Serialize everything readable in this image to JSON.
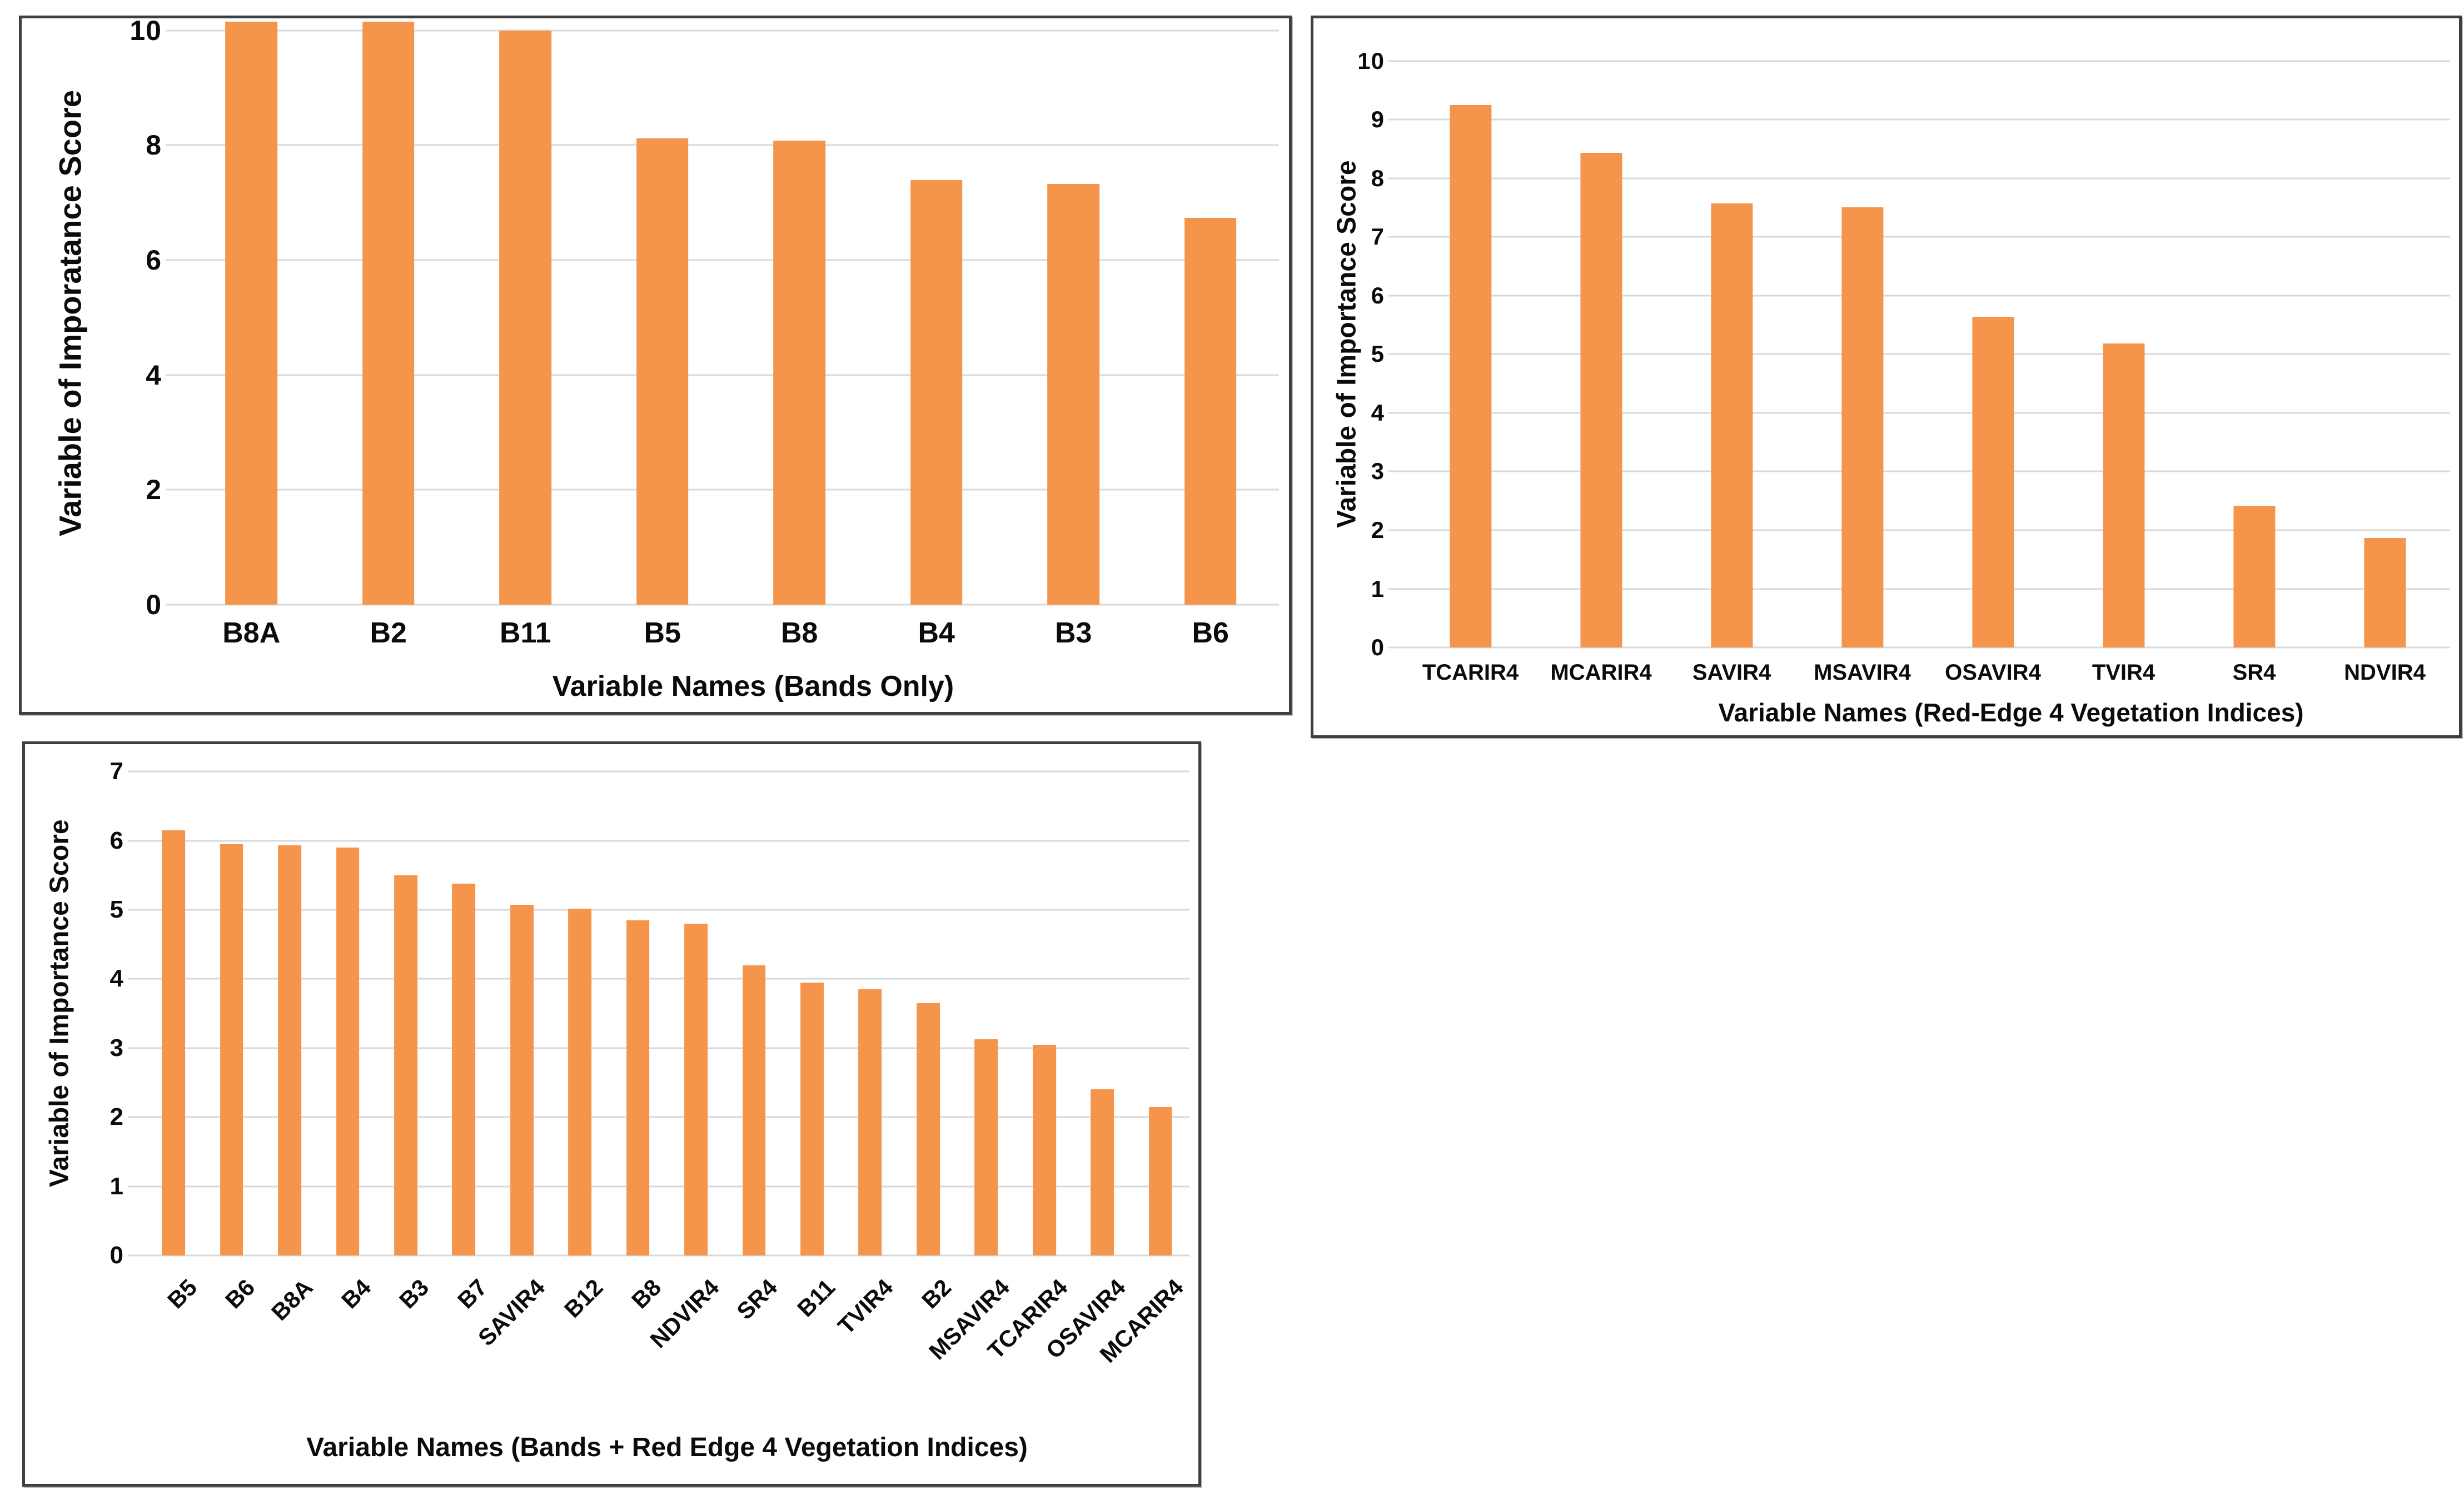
{
  "page": {
    "background": "#ffffff",
    "description": "Figure with three bar charts of random-forest variable importance scores for Sentinel-2 bands and red-edge vegetation indices"
  },
  "colors": {
    "bar": "#f5954b",
    "gridline": "#d9d9d9",
    "panel_border": "#3f3f3f",
    "text": "#0b0b0b"
  },
  "chart_data": [
    {
      "id": "bands-only",
      "type": "bar",
      "title": "",
      "ylabel": "Variable of Imporatance Score",
      "xlabel": "Variable Names (Bands Only)",
      "categories": [
        "B8A",
        "B2",
        "B11",
        "B5",
        "B8",
        "B4",
        "B3",
        "B6"
      ],
      "values": [
        10.3,
        10.3,
        10.0,
        8.12,
        8.08,
        7.39,
        7.32,
        6.73
      ],
      "ylim": [
        0,
        10.15
      ],
      "ytick_step": 2,
      "ytick_max": 10,
      "grid": true,
      "legend": "none",
      "bar_color": "#f5954b",
      "note": "B8A and B2 bars exceed the visible axis maximum and are clipped at the plot top"
    },
    {
      "id": "red-edge-4-indices",
      "type": "bar",
      "title": "",
      "ylabel": "Variable of Importance Score",
      "xlabel": "Variable Names (Red-Edge 4 Vegetation Indices)",
      "categories": [
        "TCARIR4",
        "MCARIR4",
        "SAVIR4",
        "MSAVIR4",
        "OSAVIR4",
        "TVIR4",
        "SR4",
        "NDVIR4"
      ],
      "values": [
        9.25,
        8.44,
        7.57,
        7.51,
        5.64,
        5.18,
        2.42,
        1.87
      ],
      "ylim": [
        0,
        10.35
      ],
      "ytick_step": 1,
      "ytick_max": 10,
      "grid": true,
      "legend": "none",
      "bar_color": "#f5954b"
    },
    {
      "id": "bands-plus-red-edge-4",
      "type": "bar",
      "title": "",
      "ylabel": "Variable of Importance Score",
      "xlabel": "Variable Names (Bands + Red Edge 4 Vegetation Indices)",
      "categories": [
        "B5",
        "B6",
        "B8A",
        "B4",
        "B3",
        "B7",
        "SAVIR4",
        "B12",
        "B8",
        "NDVIR4",
        "SR4",
        "B11",
        "TVIR4",
        "B2",
        "MSAVIR4",
        "TCARIR4",
        "OSAVIR4",
        "MCARIR4"
      ],
      "values": [
        6.15,
        5.95,
        5.93,
        5.9,
        5.5,
        5.38,
        5.07,
        5.02,
        4.85,
        4.8,
        4.2,
        3.95,
        3.85,
        3.65,
        3.13,
        3.05,
        2.4,
        2.15
      ],
      "ylim": [
        0,
        7.3
      ],
      "ytick_step": 1,
      "ytick_max": 7,
      "xtick_rotation": -45,
      "grid": true,
      "legend": "none",
      "bar_color": "#f5954b"
    }
  ]
}
